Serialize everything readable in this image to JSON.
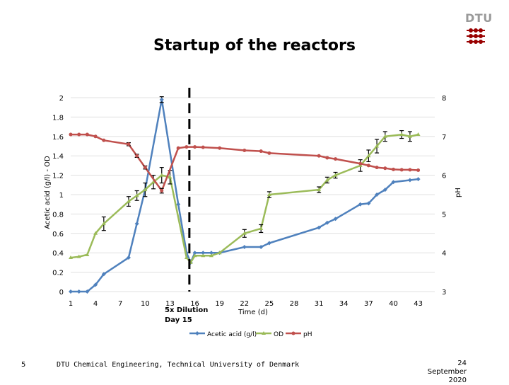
{
  "slide": {
    "title": "Startup of the reactors",
    "logo_text": "DTU",
    "page_number": "5",
    "footer": "DTU Chemical Engineering, Technical University of Denmark",
    "date_line1": "24",
    "date_line2": "September",
    "date_line3": "2020"
  },
  "colors": {
    "acetic": "#4f81bd",
    "od": "#9bbb59",
    "ph": "#c0504d",
    "logo_red": "#990000"
  },
  "chart_data": {
    "type": "line",
    "xlabel": "Time (d)",
    "ylabel_left": "Acetic acid (g/l) - OD",
    "ylabel_right": "pH",
    "x_ticks": [
      "1",
      "4",
      "7",
      "10",
      "13",
      "16",
      "19",
      "22",
      "25",
      "28",
      "31",
      "34",
      "37",
      "40",
      "43"
    ],
    "ylim_left": [
      0,
      2
    ],
    "y_ticks_left": [
      "0",
      "0.2",
      "0.4",
      "0.6",
      "0.8",
      "1",
      "1.2",
      "1.4",
      "1.6",
      "1.8",
      "2"
    ],
    "ylim_right": [
      3,
      8
    ],
    "y_ticks_right": [
      "3",
      "4",
      "5",
      "6",
      "7",
      "8"
    ],
    "annotation": {
      "x": 15,
      "line1": "5x Dilution",
      "line2": "Day 15"
    },
    "legend_position": "bottom",
    "series": [
      {
        "name": "Acetic acid (g/l)",
        "axis": "left",
        "x": [
          1,
          2,
          3,
          4,
          5,
          8,
          9,
          10,
          12,
          14,
          15,
          15.5,
          16,
          17,
          18,
          19,
          22,
          24,
          25,
          31,
          32,
          33,
          36,
          37,
          38,
          39,
          40,
          42,
          43
        ],
        "y": [
          0,
          0,
          0,
          0.07,
          0.18,
          0.35,
          0.7,
          1.05,
          1.98,
          0.9,
          0.4,
          0.3,
          0.4,
          0.4,
          0.4,
          0.4,
          0.46,
          0.46,
          0.5,
          0.66,
          0.71,
          0.75,
          0.9,
          0.91,
          1.0,
          1.05,
          1.13,
          1.15,
          1.16
        ],
        "err": [
          0,
          0,
          0,
          0,
          0,
          0,
          0,
          0,
          0.03,
          0,
          0,
          0,
          0,
          0,
          0,
          0,
          0,
          0,
          0,
          0,
          0,
          0,
          0,
          0,
          0,
          0,
          0,
          0,
          0
        ]
      },
      {
        "name": "OD",
        "axis": "left",
        "x": [
          1,
          2,
          3,
          4,
          5,
          8,
          9,
          10,
          11,
          12,
          13,
          15,
          15.5,
          16,
          17,
          18,
          19,
          22,
          24,
          25,
          31,
          32,
          33,
          36,
          37,
          38,
          39,
          41,
          42,
          43
        ],
        "y": [
          0.35,
          0.36,
          0.38,
          0.6,
          0.7,
          0.93,
          0.99,
          1.05,
          1.13,
          1.2,
          1.18,
          0.35,
          0.3,
          0.37,
          0.37,
          0.37,
          0.4,
          0.6,
          0.65,
          1.0,
          1.05,
          1.15,
          1.2,
          1.3,
          1.4,
          1.5,
          1.6,
          1.62,
          1.6,
          1.62
        ],
        "err": [
          0,
          0,
          0,
          0,
          0.07,
          0.05,
          0.05,
          0.07,
          0.07,
          0.08,
          0.07,
          0,
          0,
          0,
          0,
          0,
          0,
          0.04,
          0.04,
          0.03,
          0.03,
          0.03,
          0.03,
          0.06,
          0.06,
          0.07,
          0.05,
          0.04,
          0.05,
          0
        ]
      },
      {
        "name": "pH",
        "axis": "right",
        "x": [
          1,
          2,
          3,
          4,
          5,
          8,
          9,
          10,
          12,
          14,
          15,
          16,
          17,
          19,
          22,
          24,
          25,
          31,
          32,
          33,
          36,
          37,
          38,
          39,
          40,
          41,
          42,
          43
        ],
        "y": [
          7.05,
          7.05,
          7.05,
          7.0,
          6.9,
          6.8,
          6.5,
          6.2,
          5.6,
          6.7,
          6.73,
          6.73,
          6.72,
          6.7,
          6.64,
          6.62,
          6.57,
          6.5,
          6.45,
          6.42,
          6.3,
          6.25,
          6.2,
          6.18,
          6.15,
          6.14,
          6.14,
          6.13
        ],
        "err": [
          0,
          0,
          0,
          0,
          0,
          0.04,
          0.04,
          0.04,
          0.06,
          0,
          0,
          0,
          0,
          0,
          0,
          0,
          0,
          0,
          0,
          0,
          0,
          0,
          0,
          0,
          0,
          0,
          0,
          0
        ]
      }
    ]
  }
}
